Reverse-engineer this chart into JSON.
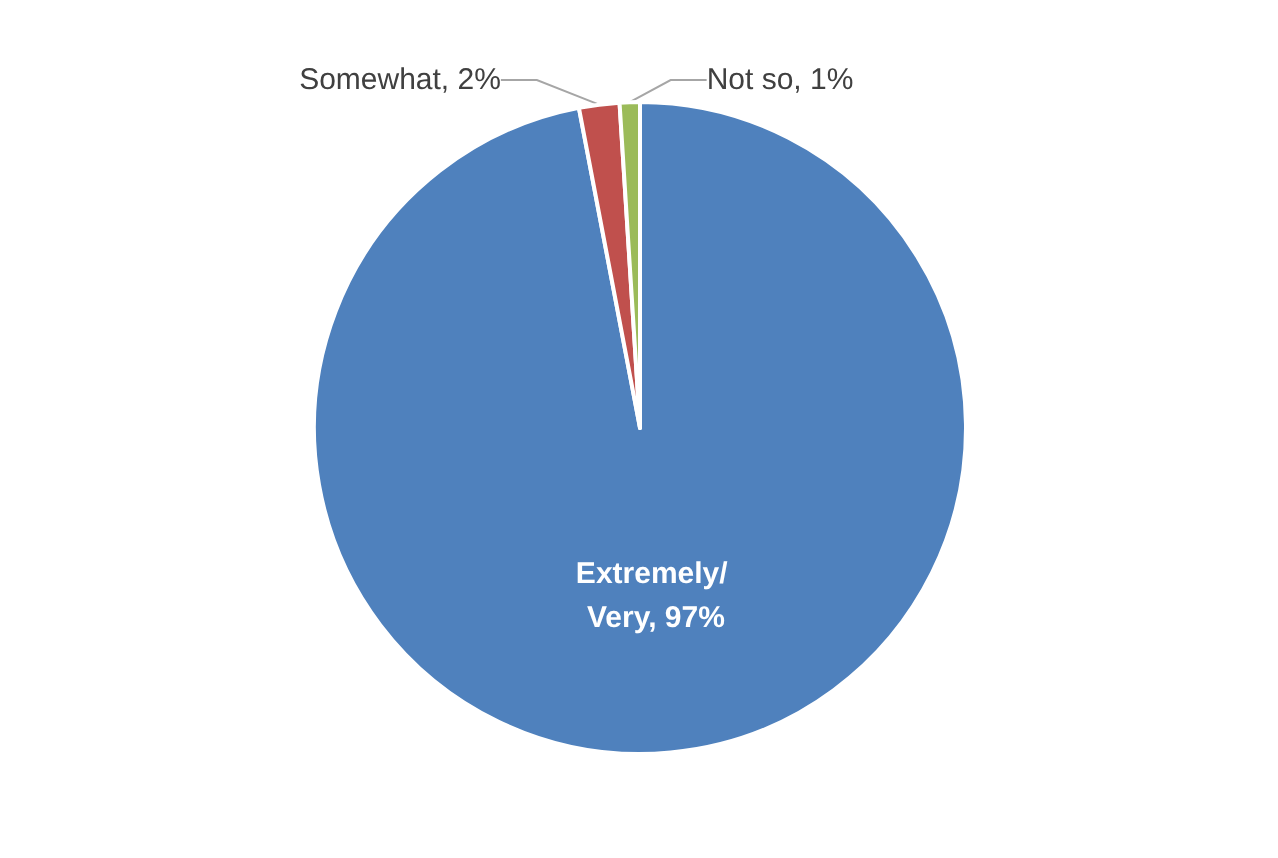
{
  "chart_data": {
    "type": "pie",
    "categories": [
      "Extremely/ Very",
      "Somewhat",
      "Not so"
    ],
    "values": [
      97,
      2,
      1
    ],
    "colors": [
      "#4f81bd",
      "#c0504d",
      "#9bbb59"
    ],
    "value_labels": [
      "97%",
      "2%",
      "1%"
    ],
    "legend": false
  }
}
